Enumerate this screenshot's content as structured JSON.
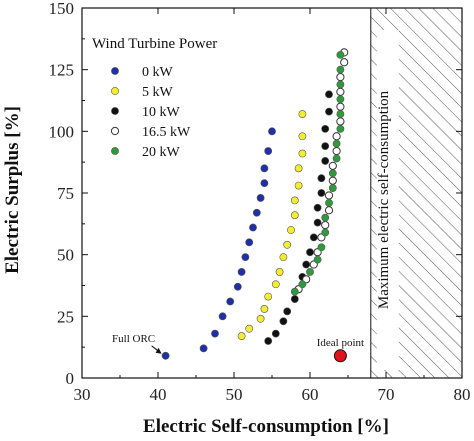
{
  "chart_data": {
    "type": "scatter",
    "xlabel": "Electric Self-consumption [%]",
    "ylabel": "Electric Surplus [%]",
    "xlim": [
      30,
      80
    ],
    "ylim": [
      0,
      150
    ],
    "xticks": [
      "30",
      "40",
      "50",
      "60",
      "70",
      "80"
    ],
    "yticks": [
      "0",
      "25",
      "50",
      "75",
      "100",
      "125",
      "150"
    ],
    "grid": false,
    "legend_title": "Wind Turbine Power",
    "legend_position": "upper-left",
    "colors": {
      "0 kW": "#1f2fa8",
      "5 kW": "#f2ee2e",
      "10 kW": "#111111",
      "16.5 kW": "#ffffff",
      "20 kW": "#2e9a3a",
      "ideal": "#e0151b"
    },
    "series": [
      {
        "name": "0 kW",
        "points": [
          [
            41.0,
            9.0
          ],
          [
            46.0,
            12.0
          ],
          [
            47.5,
            18.0
          ],
          [
            48.5,
            25.0
          ],
          [
            49.5,
            31.0
          ],
          [
            50.5,
            37.0
          ],
          [
            51.0,
            43.0
          ],
          [
            51.5,
            49.0
          ],
          [
            52.0,
            55.0
          ],
          [
            52.5,
            61.0
          ],
          [
            53.0,
            67.0
          ],
          [
            53.5,
            73.0
          ],
          [
            54.0,
            79.0
          ],
          [
            54.0,
            85.0
          ],
          [
            54.5,
            92.0
          ],
          [
            55.0,
            100.0
          ]
        ]
      },
      {
        "name": "5 kW",
        "points": [
          [
            51.0,
            17.0
          ],
          [
            52.0,
            20.0
          ],
          [
            53.5,
            24.0
          ],
          [
            54.0,
            28.0
          ],
          [
            54.5,
            33.0
          ],
          [
            55.5,
            38.0
          ],
          [
            56.0,
            43.0
          ],
          [
            56.5,
            49.0
          ],
          [
            57.0,
            54.0
          ],
          [
            57.5,
            60.0
          ],
          [
            58.0,
            66.0
          ],
          [
            58.0,
            72.0
          ],
          [
            58.5,
            78.0
          ],
          [
            58.5,
            85.0
          ],
          [
            59.0,
            91.0
          ],
          [
            59.0,
            98.0
          ],
          [
            59.0,
            107.0
          ]
        ]
      },
      {
        "name": "10 kW",
        "points": [
          [
            54.5,
            15.0
          ],
          [
            55.5,
            18.0
          ],
          [
            56.5,
            23.0
          ],
          [
            57.0,
            27.0
          ],
          [
            58.0,
            32.0
          ],
          [
            58.5,
            36.0
          ],
          [
            59.0,
            41.0
          ],
          [
            59.5,
            46.0
          ],
          [
            60.0,
            51.0
          ],
          [
            60.5,
            57.0
          ],
          [
            61.0,
            63.0
          ],
          [
            61.0,
            69.0
          ],
          [
            61.5,
            75.0
          ],
          [
            61.5,
            81.0
          ],
          [
            62.0,
            88.0
          ],
          [
            62.0,
            94.0
          ],
          [
            62.0,
            101.0
          ],
          [
            62.5,
            108.0
          ],
          [
            62.5,
            115.0
          ]
        ]
      },
      {
        "name": "16.5 kW",
        "points": [
          [
            58.5,
            36.0
          ],
          [
            59.5,
            40.0
          ],
          [
            60.5,
            46.0
          ],
          [
            61.0,
            51.0
          ],
          [
            61.5,
            57.0
          ],
          [
            62.0,
            62.0
          ],
          [
            62.5,
            68.0
          ],
          [
            62.5,
            74.0
          ],
          [
            63.0,
            80.0
          ],
          [
            63.0,
            86.0
          ],
          [
            63.5,
            92.0
          ],
          [
            63.5,
            98.0
          ],
          [
            64.0,
            104.0
          ],
          [
            64.0,
            110.0
          ],
          [
            64.0,
            116.0
          ],
          [
            64.0,
            122.0
          ],
          [
            64.5,
            128.0
          ],
          [
            64.5,
            132.0
          ]
        ]
      },
      {
        "name": "20 kW",
        "points": [
          [
            58.0,
            35.0
          ],
          [
            59.0,
            38.0
          ],
          [
            60.0,
            43.0
          ],
          [
            61.0,
            48.0
          ],
          [
            61.5,
            53.0
          ],
          [
            62.0,
            59.0
          ],
          [
            62.0,
            65.0
          ],
          [
            62.5,
            71.0
          ],
          [
            63.0,
            77.0
          ],
          [
            63.0,
            83.0
          ],
          [
            63.5,
            89.0
          ],
          [
            63.5,
            95.0
          ],
          [
            64.0,
            101.0
          ],
          [
            64.0,
            107.0
          ],
          [
            64.0,
            113.0
          ],
          [
            64.0,
            119.0
          ],
          [
            64.0,
            125.0
          ],
          [
            64.0,
            131.0
          ]
        ]
      }
    ],
    "ideal_point": {
      "label": "Ideal point",
      "x": 64.0,
      "y": 9.0
    },
    "annotations": [
      {
        "text": "Full ORC",
        "x": 41.0,
        "y": 9.0
      }
    ],
    "shaded_region": {
      "label": "Maximum electric self-consumption",
      "x_from": 68.0,
      "x_to": 80.0,
      "pattern": "diagonal-hatch"
    }
  }
}
